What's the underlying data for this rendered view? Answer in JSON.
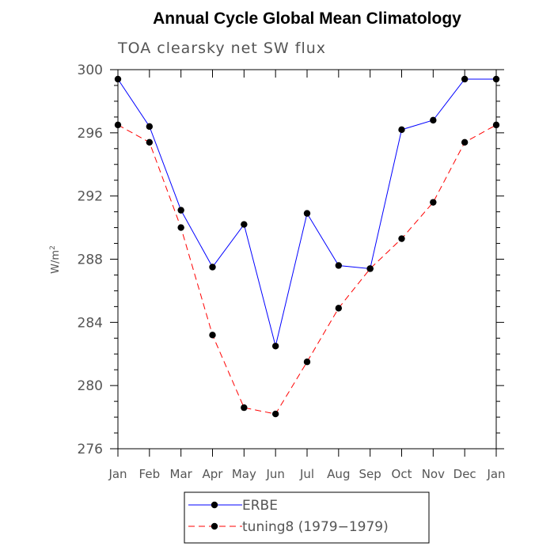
{
  "chart_data": {
    "type": "line",
    "title": "Annual Cycle Global Mean Climatology",
    "subtitle": "TOA clearsky net SW flux",
    "ylabel": "W/m",
    "ylabel_sup": "2",
    "xlabel": "",
    "categories": [
      "Jan",
      "Feb",
      "Mar",
      "Apr",
      "May",
      "Jun",
      "Jul",
      "Aug",
      "Sep",
      "Oct",
      "Nov",
      "Dec",
      "Jan"
    ],
    "ylim": [
      276,
      300
    ],
    "yticks": [
      276,
      280,
      284,
      288,
      292,
      296,
      300
    ],
    "grid": false,
    "legend_position": "bottom",
    "series": [
      {
        "name": "ERBE",
        "color": "#0000ff",
        "line_style": "solid",
        "marker": "filled-circle",
        "values": [
          299.4,
          296.4,
          291.1,
          287.5,
          290.2,
          282.5,
          290.9,
          287.6,
          287.4,
          296.2,
          296.8,
          299.4,
          299.4
        ]
      },
      {
        "name": "tuning8 (1979−1979)",
        "color": "#ff0000",
        "line_style": "dashed",
        "marker": "filled-circle",
        "values": [
          296.5,
          295.4,
          290.0,
          283.2,
          278.6,
          278.2,
          281.5,
          284.9,
          287.4,
          289.3,
          291.6,
          295.4,
          296.5
        ]
      }
    ]
  }
}
